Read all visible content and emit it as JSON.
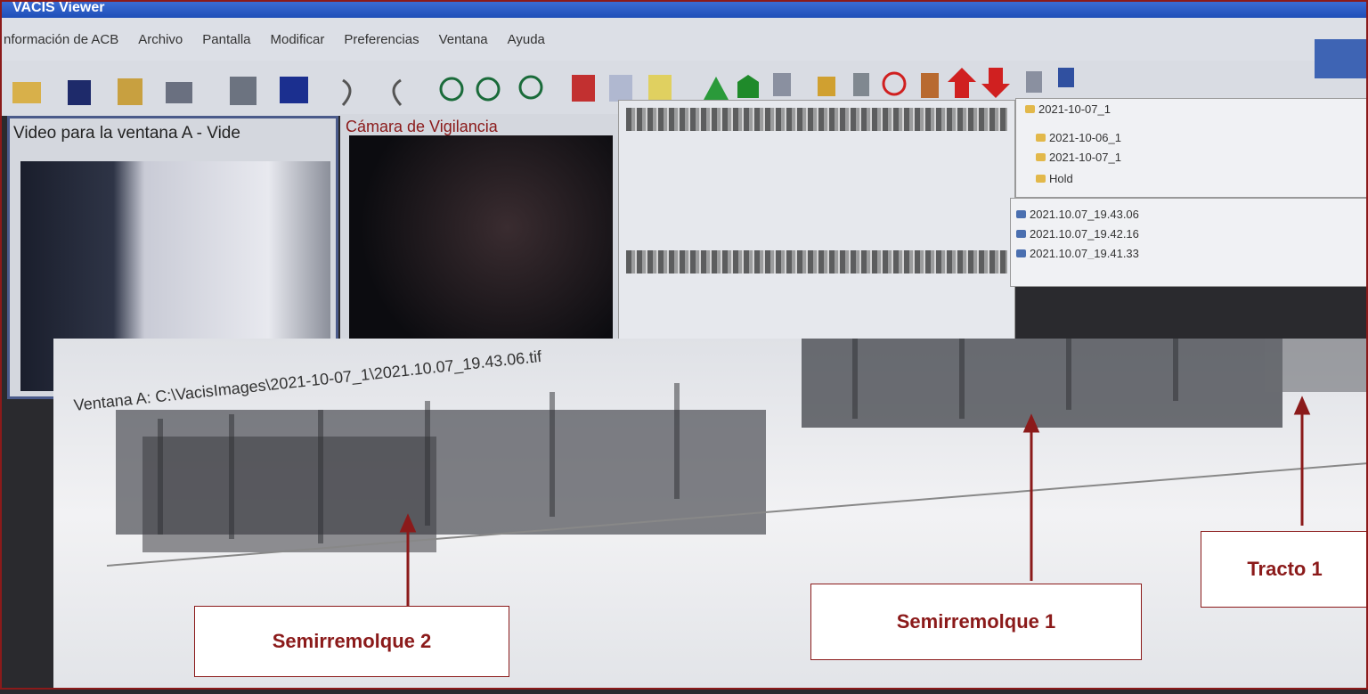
{
  "window": {
    "title": "VACIS Viewer"
  },
  "menu": [
    "nformación de ACB",
    "Archivo",
    "Pantalla",
    "Modificar",
    "Preferencias",
    "Ventana",
    "Ayuda"
  ],
  "panels": {
    "video_title": "Video para la ventana A - Vide",
    "camera_title": "Cámara de Vigilancia"
  },
  "folders": {
    "current": "2021-10-07_1",
    "items": [
      "2021-10-06_1",
      "2021-10-07_1",
      "Hold"
    ]
  },
  "files": [
    "2021.10.07_19.43.06",
    "2021.10.07_19.42.16",
    "2021.10.07_19.41.33"
  ],
  "scan_window": {
    "label": "Ventana A: C:\\VacisImages\\2021-10-07_1\\2021.10.07_19.43.06.tif"
  },
  "annotations": [
    "Semirremolque 2",
    "Semirremolque 1",
    "Tracto 1"
  ]
}
